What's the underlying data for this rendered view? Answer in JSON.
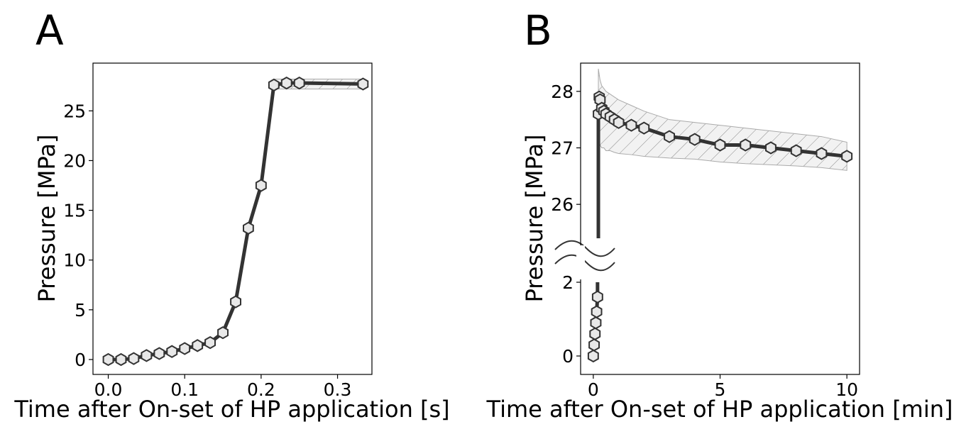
{
  "chart_data": [
    {
      "type": "line",
      "panel_label": "A",
      "xlabel": "Time after On-set of HP application [s]",
      "ylabel": "Pressure [MPa]",
      "xlim": [
        -0.02,
        0.345
      ],
      "ylim": [
        -1.5,
        29.8
      ],
      "xticks": [
        0.0,
        0.1,
        0.2,
        0.3
      ],
      "xtick_labels": [
        "0.0",
        "0.1",
        "0.2",
        "0.3"
      ],
      "yticks": [
        0,
        5,
        10,
        15,
        20,
        25
      ],
      "ytick_labels": [
        "0",
        "5",
        "10",
        "15",
        "20",
        "25"
      ],
      "grid": false,
      "marker": "hexagon",
      "line_color": "#333333",
      "marker_fill": "#e8e8e8",
      "band_fill": "#f0f0f0",
      "series": [
        {
          "x": [
            0.0,
            0.0167,
            0.0333,
            0.05,
            0.0667,
            0.0833,
            0.1,
            0.1167,
            0.1333,
            0.15,
            0.1667,
            0.1833,
            0.2,
            0.2167,
            0.2333,
            0.25,
            0.3333
          ],
          "y": [
            0.0,
            0.0,
            0.1,
            0.4,
            0.6,
            0.8,
            1.1,
            1.4,
            1.7,
            2.7,
            5.8,
            13.2,
            17.5,
            27.6,
            27.8,
            27.8,
            27.7
          ],
          "y_upper": [
            0.0,
            0.0,
            0.1,
            0.4,
            0.6,
            0.8,
            1.1,
            1.4,
            1.7,
            2.7,
            5.8,
            13.2,
            17.5,
            28.2,
            28.2,
            28.2,
            28.2
          ],
          "y_lower": [
            0.0,
            0.0,
            0.1,
            0.4,
            0.6,
            0.8,
            1.1,
            1.4,
            1.7,
            2.7,
            5.8,
            13.2,
            17.5,
            27.2,
            27.2,
            27.2,
            27.2
          ]
        }
      ]
    },
    {
      "type": "line",
      "panel_label": "B",
      "xlabel": "Time after On-set of HP application [min]",
      "ylabel": "Pressure [MPa]",
      "xlim": [
        -0.5,
        10.5
      ],
      "broken_y_axis": true,
      "upper_ylim": [
        25.5,
        28.5
      ],
      "lower_ylim": [
        -0.5,
        2.0
      ],
      "xticks": [
        0,
        5,
        10
      ],
      "xtick_labels": [
        "0",
        "5",
        "10"
      ],
      "yticks_upper": [
        26,
        27,
        28
      ],
      "ytick_labels_upper": [
        "26",
        "27",
        "28"
      ],
      "yticks_lower": [
        0,
        2
      ],
      "ytick_labels_lower": [
        "0",
        "2"
      ],
      "grid": false,
      "marker": "hexagon",
      "line_color": "#333333",
      "marker_fill": "#e8e8e8",
      "band_fill": "#f0f0f0",
      "series": [
        {
          "rise_x": [
            0.0,
            0.033,
            0.067,
            0.1,
            0.133,
            0.167
          ],
          "rise_y": [
            0.0,
            0.3,
            0.6,
            0.9,
            1.2,
            1.6
          ],
          "x": [
            0.2,
            0.233,
            0.267,
            0.333,
            0.417,
            0.5,
            0.667,
            0.833,
            1.0,
            1.5,
            2.0,
            3.0,
            4.0,
            5.0,
            6.0,
            7.0,
            8.0,
            9.0,
            10.0
          ],
          "y": [
            27.6,
            27.9,
            27.85,
            27.7,
            27.65,
            27.6,
            27.55,
            27.5,
            27.45,
            27.4,
            27.35,
            27.2,
            27.15,
            27.05,
            27.05,
            27.0,
            26.95,
            26.9,
            26.85
          ],
          "y_upper": [
            28.4,
            28.3,
            28.2,
            28.1,
            28.05,
            28.0,
            27.95,
            27.9,
            27.85,
            27.75,
            27.65,
            27.5,
            27.45,
            27.4,
            27.35,
            27.3,
            27.25,
            27.2,
            27.1
          ],
          "y_lower": [
            27.1,
            27.1,
            27.05,
            27.0,
            27.0,
            26.95,
            26.95,
            26.92,
            26.9,
            26.88,
            26.85,
            26.82,
            26.8,
            26.75,
            26.72,
            26.7,
            26.68,
            26.65,
            26.6
          ]
        }
      ]
    }
  ]
}
